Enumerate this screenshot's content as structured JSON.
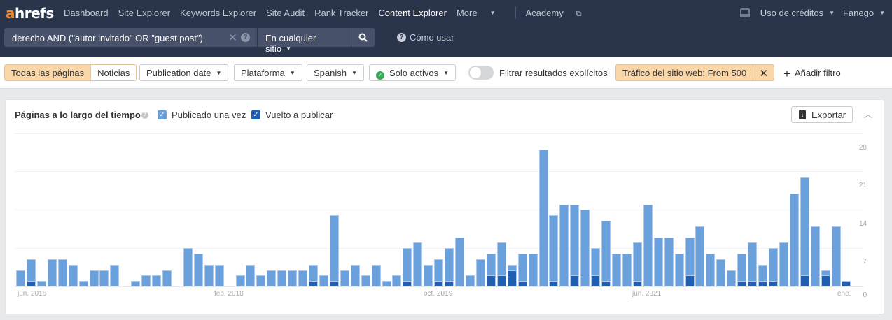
{
  "nav": {
    "logo_a": "a",
    "logo_rest": "hrefs",
    "items": [
      {
        "label": "Dashboard",
        "active": false
      },
      {
        "label": "Site Explorer",
        "active": false
      },
      {
        "label": "Keywords Explorer",
        "active": false
      },
      {
        "label": "Site Audit",
        "active": false
      },
      {
        "label": "Rank Tracker",
        "active": false
      },
      {
        "label": "Content Explorer",
        "active": true
      }
    ],
    "more_label": "More",
    "academy_label": "Academy",
    "credits_label": "Uso de créditos",
    "account_label": "Fanego"
  },
  "search": {
    "query": "derecho AND (\"autor invitado\" OR \"guest post\")",
    "scope": "En cualquier sitio",
    "howto_label": "Cómo usar"
  },
  "filters": {
    "segment_all": "Todas las páginas",
    "segment_news": "Noticias",
    "publication_date": "Publication date",
    "platform": "Plataforma",
    "language": "Spanish",
    "active_only": "Solo activos",
    "explicit_toggle_label": "Filtrar resultados explícitos",
    "traffic_filter": "Tráfico del sitio web: From 500",
    "add_filter": "Añadir filtro"
  },
  "card": {
    "title": "Páginas a lo largo del tiempo",
    "legend_published": "Publicado una vez",
    "legend_republished": "Vuelto a publicar",
    "export_label": "Exportar"
  },
  "colors": {
    "published": "#6aa1dd",
    "republished": "#2160b0",
    "nav_bg": "#2a354b",
    "highlight": "#fad7a8"
  },
  "chart_data": {
    "type": "bar",
    "title": "Páginas a lo largo del tiempo",
    "xlabel": "",
    "ylabel": "",
    "ylim": [
      0,
      28
    ],
    "yticks": [
      0,
      7,
      14,
      21,
      28
    ],
    "xtick_labels": [
      "jun. 2016",
      "feb. 2018",
      "oct. 2019",
      "jun. 2021",
      "ene."
    ],
    "grid": true,
    "legend_position": "top-left",
    "series": [
      {
        "name": "Publicado una vez",
        "values": [
          3,
          5,
          1,
          5,
          5,
          4,
          1,
          3,
          3,
          4,
          0,
          1,
          2,
          2,
          3,
          0,
          7,
          6,
          4,
          4,
          0,
          2,
          4,
          2,
          3,
          3,
          3,
          3,
          4,
          2,
          13,
          3,
          4,
          2,
          4,
          1,
          2,
          7,
          8,
          4,
          5,
          7,
          9,
          2,
          5,
          6,
          8,
          4,
          6,
          6,
          25,
          13,
          15,
          15,
          14,
          7,
          12,
          6,
          6,
          8,
          15,
          9,
          9,
          6,
          9,
          11,
          6,
          5,
          3,
          6,
          8,
          4,
          7,
          8,
          17,
          20,
          11,
          3,
          11,
          1
        ]
      },
      {
        "name": "Vuelto a publicar",
        "values": [
          0,
          1,
          0,
          0,
          0,
          0,
          0,
          0,
          0,
          0,
          0,
          0,
          0,
          0,
          0,
          0,
          0,
          0,
          0,
          0,
          0,
          0,
          0,
          0,
          0,
          0,
          0,
          0,
          1,
          0,
          1,
          0,
          0,
          0,
          0,
          0,
          0,
          1,
          0,
          0,
          1,
          1,
          0,
          0,
          0,
          2,
          2,
          3,
          1,
          0,
          0,
          1,
          0,
          2,
          0,
          2,
          1,
          0,
          0,
          1,
          0,
          0,
          0,
          0,
          2,
          0,
          0,
          0,
          0,
          1,
          1,
          1,
          1,
          0,
          0,
          2,
          0,
          2,
          0,
          1
        ]
      }
    ]
  }
}
